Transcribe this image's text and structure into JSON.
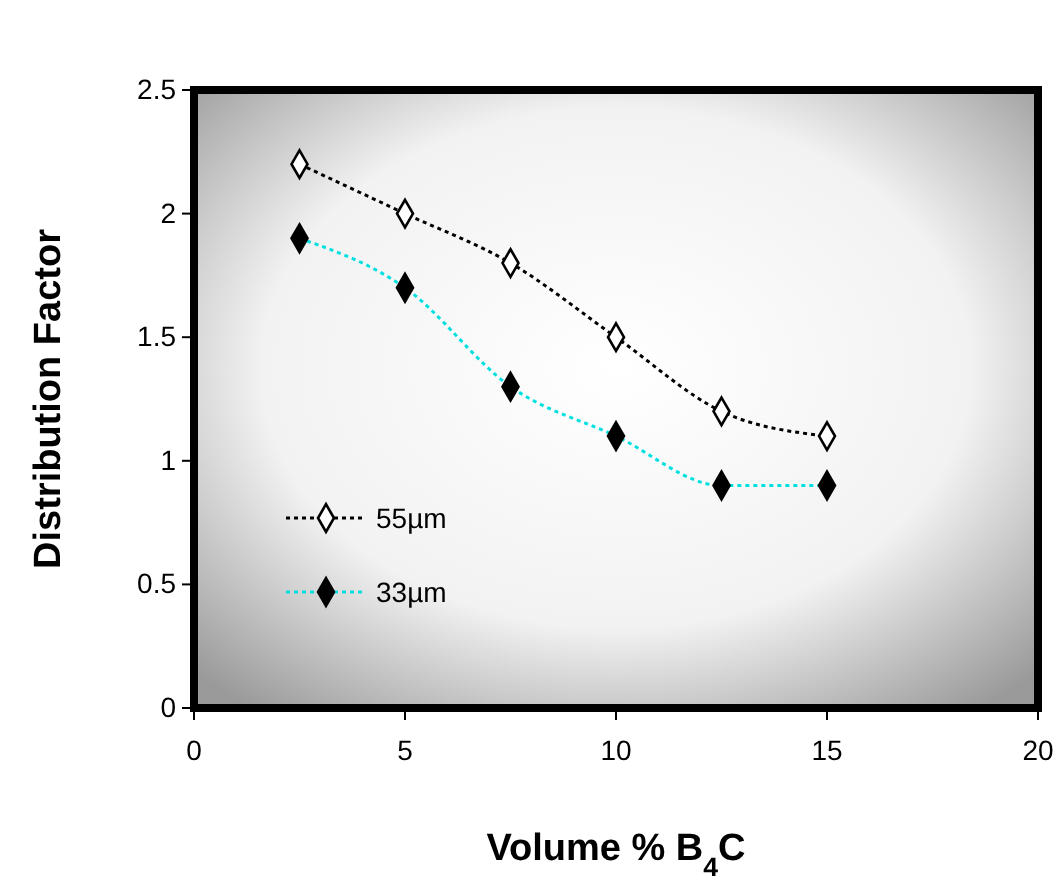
{
  "chart_data": {
    "type": "line",
    "xlabel": "Volume % B$_{4}$C",
    "ylabel": "Distribution Factor",
    "x": [
      2.5,
      5,
      7.5,
      10,
      12.5,
      15
    ],
    "series": [
      {
        "name": "55µm",
        "color": "#000000",
        "values": [
          2.2,
          2.0,
          1.8,
          1.5,
          1.2,
          1.1
        ]
      },
      {
        "name": "33µm",
        "color": "#00e0e0",
        "values": [
          1.9,
          1.7,
          1.3,
          1.1,
          0.9,
          0.9
        ]
      }
    ],
    "xlim": [
      0,
      20
    ],
    "xticks": [
      0,
      5,
      10,
      15,
      20
    ],
    "ylim": [
      0,
      2.5
    ],
    "yticks": [
      0,
      0.5,
      1,
      1.5,
      2,
      2.5
    ],
    "grid": false,
    "legend": "bottom left",
    "marker": "diamond",
    "line_style": "dotted"
  }
}
